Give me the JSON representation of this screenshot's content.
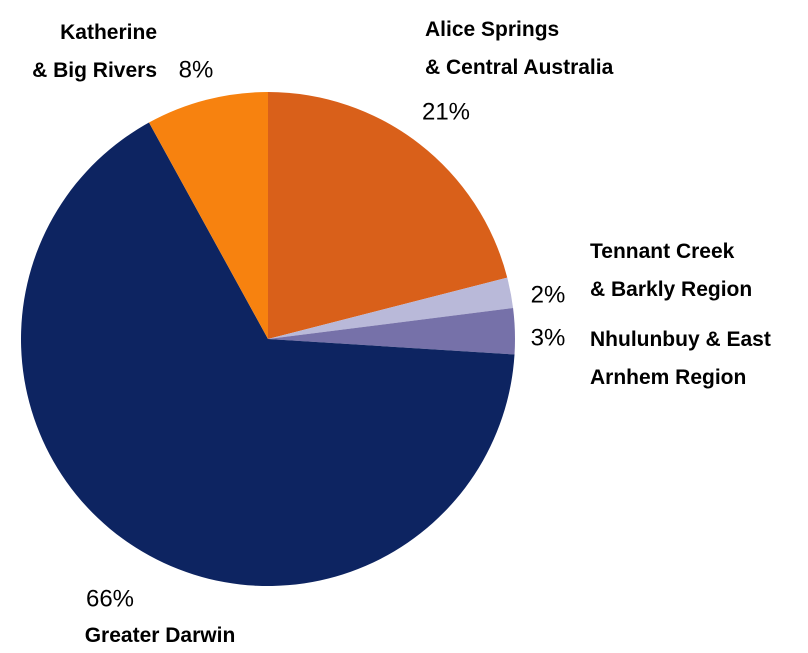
{
  "chart_data": {
    "type": "pie",
    "categories": [
      "Alice Springs\n& Central Australia",
      "Tennant Creek\n& Barkly Region",
      "Nhulunbuy & East\nArnhem Region",
      "Greater Darwin",
      "Katherine\n& Big Rivers"
    ],
    "values": [
      21,
      2,
      3,
      66,
      8
    ],
    "value_labels": [
      "21%",
      "2%",
      "3%",
      "66%",
      "8%"
    ],
    "colors": [
      "#d9601a",
      "#b9b9d9",
      "#7671a9",
      "#0d2461",
      "#f7820f"
    ]
  }
}
